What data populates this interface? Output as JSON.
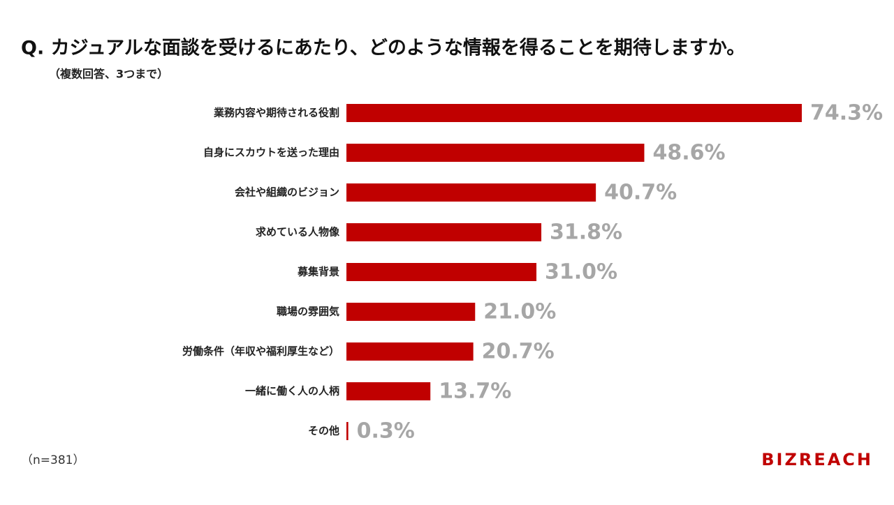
{
  "chart_data": {
    "type": "bar",
    "orientation": "horizontal",
    "title": "Q. カジュアルな面談を受けるにあたり、どのような情報を得ることを期待しますか。",
    "subtitle": "（複数回答、3つまで）",
    "categories": [
      "業務内容や期待される役割",
      "自身にスカウトを送った理由",
      "会社や組織のビジョン",
      "求めている人物像",
      "募集背景",
      "職場の雰囲気",
      "労働条件（年収や福利厚生など）",
      "一緒に働く人の人柄",
      "その他"
    ],
    "values": [
      74.3,
      48.6,
      40.7,
      31.8,
      31.0,
      21.0,
      20.7,
      13.7,
      0.3
    ],
    "value_labels": [
      "74.3%",
      "48.6%",
      "40.7%",
      "31.8%",
      "31.0%",
      "21.0%",
      "20.7%",
      "13.7%",
      "0.3%"
    ],
    "color": "#c00000",
    "value_label_color": "#a6a6a6",
    "note": "（n=381）",
    "brand": "BIZREACH"
  }
}
